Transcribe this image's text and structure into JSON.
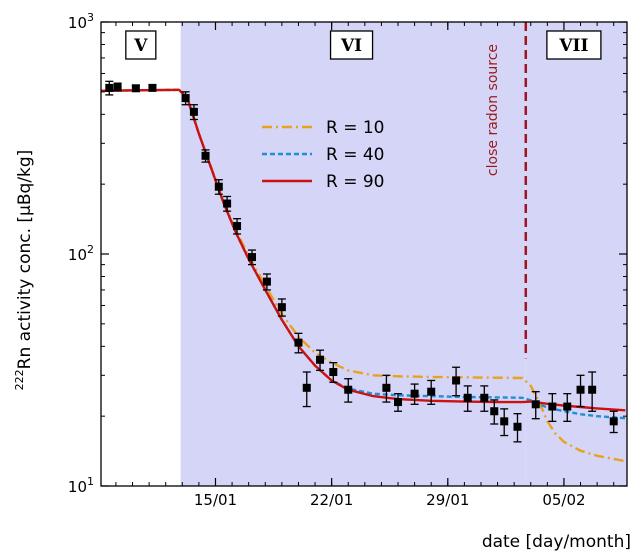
{
  "chart_data": {
    "type": "scatter",
    "title": "",
    "xlabel": "date [day/month]",
    "ylabel_prefix": "222",
    "ylabel_text": "Rn activity conc. [µBq/kg]",
    "x_unit": "day of year",
    "x_ticks": [
      {
        "x": 15,
        "label": "15/01"
      },
      {
        "x": 22,
        "label": "22/01"
      },
      {
        "x": 29,
        "label": "29/01"
      },
      {
        "x": 36,
        "label": "05/02"
      }
    ],
    "xlim": [
      8.1,
      39.8
    ],
    "y_scale": "log",
    "ylim": [
      10,
      1000
    ],
    "y_ticks": [
      {
        "y": 10,
        "base": "10",
        "exp": "1"
      },
      {
        "y": 100,
        "base": "10",
        "exp": "2"
      },
      {
        "y": 1000,
        "base": "10",
        "exp": "3"
      }
    ],
    "grid": false,
    "regions": [
      {
        "label": "V",
        "x_start": 8.1,
        "x_end": 12.9,
        "color": "#ffffff"
      },
      {
        "label": "VI",
        "x_start": 12.9,
        "x_end": 33.7,
        "color": "#d5d5f7"
      },
      {
        "label": "VII",
        "x_start": 33.7,
        "x_end": 39.8,
        "color": "#d5d5f7"
      }
    ],
    "annotation": {
      "text": "close radon source",
      "x": 33.7,
      "color": "#a0151c"
    },
    "legend_position": "upper-left of region VI",
    "series": [
      {
        "name": "R = 10",
        "color": "#e8a21c",
        "dash": "dashdot",
        "points": [
          [
            8.1,
            505
          ],
          [
            12.8,
            510
          ],
          [
            13.3,
            470
          ],
          [
            14.0,
            330
          ],
          [
            14.8,
            230
          ],
          [
            15.5,
            168
          ],
          [
            16.2,
            128
          ],
          [
            17.0,
            98
          ],
          [
            18.0,
            73
          ],
          [
            19.0,
            55
          ],
          [
            20.0,
            44
          ],
          [
            21.0,
            37.5
          ],
          [
            22.0,
            34
          ],
          [
            23.0,
            31.5
          ],
          [
            24.5,
            30
          ],
          [
            26.0,
            29.7
          ],
          [
            28.0,
            29.5
          ],
          [
            30.0,
            29.4
          ],
          [
            32.0,
            29.3
          ],
          [
            33.5,
            29.2
          ],
          [
            34.0,
            27
          ],
          [
            34.5,
            23
          ],
          [
            35.0,
            19
          ],
          [
            35.5,
            16.8
          ],
          [
            36.0,
            15.5
          ],
          [
            37.0,
            14.2
          ],
          [
            38.0,
            13.5
          ],
          [
            39.7,
            12.8
          ]
        ]
      },
      {
        "name": "R = 40",
        "color": "#1f8fd6",
        "dash": "dashed",
        "points": [
          [
            8.1,
            505
          ],
          [
            12.8,
            510
          ],
          [
            13.3,
            470
          ],
          [
            14.0,
            330
          ],
          [
            14.8,
            228
          ],
          [
            15.5,
            165
          ],
          [
            16.2,
            125
          ],
          [
            17.0,
            95
          ],
          [
            18.0,
            70
          ],
          [
            19.0,
            52
          ],
          [
            20.0,
            40
          ],
          [
            21.0,
            33
          ],
          [
            22.0,
            28.5
          ],
          [
            23.0,
            26.3
          ],
          [
            24.5,
            25
          ],
          [
            26.0,
            24.6
          ],
          [
            28.0,
            24.4
          ],
          [
            30.0,
            24.2
          ],
          [
            32.0,
            24.1
          ],
          [
            33.5,
            24
          ],
          [
            34.0,
            23.4
          ],
          [
            34.5,
            22.5
          ],
          [
            35.0,
            21.8
          ],
          [
            36.0,
            21
          ],
          [
            37.0,
            20.4
          ],
          [
            38.0,
            20
          ],
          [
            39.7,
            19.6
          ]
        ]
      },
      {
        "name": "R = 90",
        "color": "#cc1111",
        "dash": "solid",
        "points": [
          [
            8.1,
            505
          ],
          [
            12.8,
            510
          ],
          [
            13.3,
            470
          ],
          [
            14.0,
            330
          ],
          [
            14.8,
            228
          ],
          [
            15.5,
            165
          ],
          [
            16.2,
            125
          ],
          [
            17.0,
            95
          ],
          [
            18.0,
            70
          ],
          [
            19.0,
            52
          ],
          [
            20.0,
            40
          ],
          [
            21.0,
            33
          ],
          [
            22.0,
            28.5
          ],
          [
            23.0,
            26
          ],
          [
            24.5,
            24.4
          ],
          [
            26.0,
            23.7
          ],
          [
            28.0,
            23.3
          ],
          [
            30.0,
            23.1
          ],
          [
            32.0,
            23.0
          ],
          [
            33.5,
            23.0
          ],
          [
            34.0,
            23.1
          ],
          [
            35.0,
            22.6
          ],
          [
            36.0,
            22.2
          ],
          [
            37.0,
            21.9
          ],
          [
            38.0,
            21.6
          ],
          [
            39.7,
            21.2
          ]
        ]
      },
      {
        "name": "",
        "color": "#000000",
        "marker": "square",
        "points": [
          {
            "x": 8.6,
            "y": 520,
            "err": 35
          },
          {
            "x": 9.1,
            "y": 525,
            "err": 20
          },
          {
            "x": 10.2,
            "y": 518,
            "err": 15
          },
          {
            "x": 11.2,
            "y": 520,
            "err": 15
          },
          {
            "x": 13.2,
            "y": 470,
            "err": 30
          },
          {
            "x": 13.7,
            "y": 410,
            "err": 30
          },
          {
            "x": 14.4,
            "y": 265,
            "err": 16
          },
          {
            "x": 15.2,
            "y": 195,
            "err": 14
          },
          {
            "x": 15.7,
            "y": 165,
            "err": 12
          },
          {
            "x": 16.3,
            "y": 132,
            "err": 10
          },
          {
            "x": 17.2,
            "y": 97,
            "err": 7
          },
          {
            "x": 18.1,
            "y": 76,
            "err": 6
          },
          {
            "x": 19.0,
            "y": 59,
            "err": 5
          },
          {
            "x": 20.0,
            "y": 41.5,
            "err": 4
          },
          {
            "x": 20.5,
            "y": 26.5,
            "err": 4.5
          },
          {
            "x": 21.3,
            "y": 35,
            "err": 3.5
          },
          {
            "x": 22.1,
            "y": 31,
            "err": 3
          },
          {
            "x": 23.0,
            "y": 26,
            "err": 3
          },
          {
            "x": 25.3,
            "y": 26.5,
            "err": 3.5
          },
          {
            "x": 26.0,
            "y": 23,
            "err": 2
          },
          {
            "x": 27.0,
            "y": 25,
            "err": 2.5
          },
          {
            "x": 28.0,
            "y": 25.5,
            "err": 3
          },
          {
            "x": 29.5,
            "y": 28.5,
            "err": 4
          },
          {
            "x": 30.2,
            "y": 24,
            "err": 3
          },
          {
            "x": 31.2,
            "y": 24,
            "err": 3
          },
          {
            "x": 31.8,
            "y": 21,
            "err": 2.5
          },
          {
            "x": 32.4,
            "y": 19,
            "err": 2.5
          },
          {
            "x": 33.2,
            "y": 18,
            "err": 2.5
          },
          {
            "x": 34.3,
            "y": 22.5,
            "err": 3
          },
          {
            "x": 35.3,
            "y": 22,
            "err": 3
          },
          {
            "x": 36.2,
            "y": 22,
            "err": 3
          },
          {
            "x": 37.0,
            "y": 26,
            "err": 4
          },
          {
            "x": 37.7,
            "y": 26,
            "err": 5
          },
          {
            "x": 39.0,
            "y": 19,
            "err": 2
          }
        ]
      }
    ]
  }
}
